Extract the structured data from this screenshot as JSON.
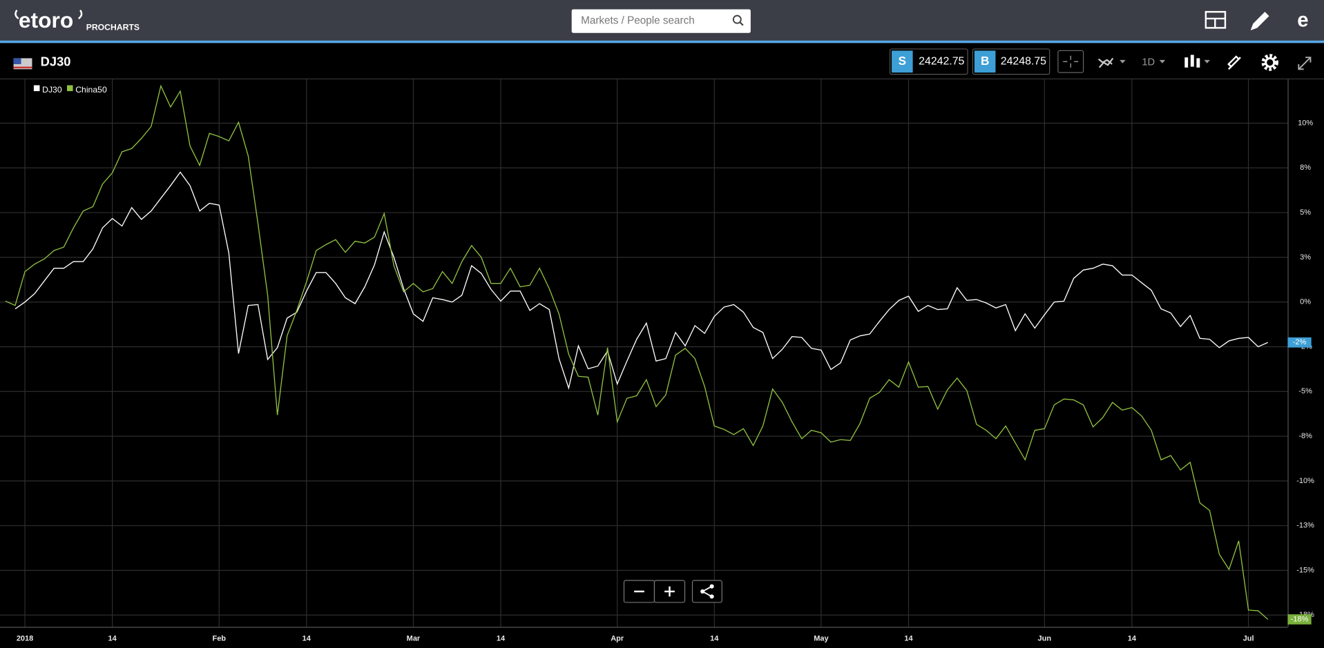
{
  "ui": {
    "logo": "etoro",
    "logo_sub": "PROCHARTS",
    "search_placeholder": "Markets / People search",
    "instrument": "DJ30",
    "sell_label": "S",
    "sell_price": 24242.75,
    "buy_label": "B",
    "buy_price": 24248.75,
    "timeframe": "1D"
  },
  "chart_data": {
    "type": "line",
    "categories": [
      null,
      null,
      "2018",
      null,
      null,
      null,
      null,
      null,
      null,
      null,
      null,
      "14",
      null,
      null,
      null,
      null,
      null,
      null,
      null,
      null,
      null,
      null,
      "Feb",
      null,
      null,
      null,
      null,
      null,
      null,
      null,
      null,
      "14",
      null,
      null,
      null,
      null,
      null,
      null,
      null,
      null,
      null,
      null,
      "Mar",
      null,
      null,
      null,
      null,
      null,
      null,
      null,
      null,
      "14",
      null,
      null,
      null,
      null,
      null,
      null,
      null,
      null,
      null,
      null,
      null,
      "Apr",
      null,
      null,
      null,
      null,
      null,
      null,
      null,
      null,
      null,
      "14",
      null,
      null,
      null,
      null,
      null,
      null,
      null,
      null,
      null,
      null,
      "May",
      null,
      null,
      null,
      null,
      null,
      null,
      null,
      null,
      "14",
      null,
      null,
      null,
      null,
      null,
      null,
      null,
      null,
      null,
      null,
      null,
      null,
      null,
      "Jun",
      null,
      null,
      null,
      null,
      null,
      null,
      null,
      null,
      "14",
      null,
      null,
      null,
      null,
      null,
      null,
      null,
      null,
      null,
      null,
      null,
      "Jul",
      null,
      null
    ],
    "series": [
      {
        "name": "DJ30",
        "color": "#ffffff",
        "label_color": "#3d9fd6",
        "values": [
          null,
          -0.38,
          0,
          0.47,
          1.18,
          1.89,
          1.89,
          2.26,
          2.26,
          2.97,
          4.15,
          4.67,
          4.25,
          5.28,
          4.62,
          5.09,
          5.8,
          6.51,
          7.26,
          6.51,
          5.09,
          5.52,
          5.42,
          2.74,
          -2.88,
          -0.19,
          -0.14,
          -3.21,
          -2.55,
          -0.9,
          -0.57,
          0.61,
          1.65,
          1.65,
          1.04,
          0.24,
          -0.09,
          0.85,
          2.08,
          3.92,
          2.5,
          0.75,
          -0.66,
          -1.08,
          0.24,
          0.14,
          0,
          0.38,
          2.03,
          1.6,
          0.71,
          0.05,
          0.61,
          0.61,
          -0.47,
          -0.09,
          -0.42,
          -3.16,
          -4.81,
          -2.45,
          -3.73,
          -3.58,
          -2.74,
          -4.58,
          -3.3,
          -2.08,
          -1.18,
          -3.3,
          -3.16,
          -1.7,
          -2.45,
          -1.32,
          -1.75,
          -0.8,
          -0.28,
          -0.14,
          -0.57,
          -1.42,
          -1.7,
          -3.16,
          -2.64,
          -1.93,
          -1.98,
          -2.59,
          -2.69,
          -3.77,
          -3.4,
          -2.12,
          -1.89,
          -1.79,
          -1.08,
          -0.42,
          0.09,
          0.33,
          -0.52,
          -0.19,
          -0.42,
          -0.38,
          0.8,
          0.09,
          0.14,
          -0.05,
          -0.33,
          -0.14,
          -1.6,
          -0.66,
          -1.46,
          -0.71,
          0,
          0.05,
          1.32,
          1.79,
          1.89,
          2.12,
          2.03,
          1.51,
          1.51,
          1.08,
          0.66,
          -0.38,
          -0.61,
          -1.37,
          -0.75,
          -2.03,
          -2.08,
          -2.55,
          -2.17,
          -2.03,
          -1.98,
          -2.5,
          -2.26
        ],
        "value_labels": [
          null,
          null,
          null,
          null,
          null,
          null,
          null,
          null,
          null,
          null,
          null,
          null,
          null,
          null,
          null,
          null,
          null,
          null,
          null,
          null,
          null,
          null,
          null,
          null,
          null,
          null,
          null,
          null,
          null,
          null,
          null,
          null,
          null,
          null,
          null,
          null,
          null,
          null,
          null,
          null,
          null,
          null,
          null,
          null,
          null,
          null,
          null,
          null,
          null,
          null,
          null,
          null,
          null,
          null,
          null,
          null,
          null,
          null,
          null,
          null,
          null,
          null,
          null,
          null,
          null,
          null,
          null,
          null,
          null,
          null,
          null,
          null,
          null,
          null,
          null,
          null,
          null,
          null,
          null,
          null,
          null,
          null,
          null,
          null,
          null,
          null,
          null,
          null,
          null,
          null,
          null,
          null,
          null,
          null,
          null,
          null,
          null,
          null,
          null,
          null,
          null,
          null,
          null,
          null,
          null,
          null,
          null,
          null,
          null,
          null,
          null,
          null,
          null,
          null,
          null,
          null,
          null,
          null,
          null,
          null,
          null,
          null,
          null,
          null,
          null,
          null,
          null,
          null,
          null,
          null,
          "-2%"
        ]
      },
      {
        "name": "China50",
        "color": "#8fc040",
        "label_color": "#7ab03c",
        "values": [
          0.05,
          -0.19,
          1.7,
          2.12,
          2.41,
          2.88,
          3.07,
          4.15,
          5.09,
          5.33,
          6.6,
          7.22,
          8.4,
          8.58,
          9.15,
          9.81,
          12.08,
          10.9,
          11.79,
          8.73,
          7.64,
          9.43,
          9.25,
          9.01,
          10.05,
          8.16,
          4.39,
          0.38,
          -6.32,
          -1.89,
          -0.47,
          1.13,
          2.88,
          3.21,
          3.49,
          2.78,
          3.4,
          3.3,
          3.63,
          4.95,
          2.03,
          0.57,
          1.04,
          0.57,
          0.75,
          1.7,
          1.04,
          2.26,
          3.16,
          2.5,
          1.04,
          1.04,
          1.89,
          0.85,
          0.94,
          1.89,
          0.75,
          -0.66,
          -2.92,
          -4.15,
          -4.2,
          -6.32,
          -2.55,
          -6.7,
          -5.38,
          -5.24,
          -4.34,
          -5.85,
          -5.19,
          -2.97,
          -2.59,
          -3.16,
          -4.72,
          -6.93,
          -7.12,
          -7.41,
          -7.08,
          -8.02,
          -6.93,
          -4.86,
          -5.61,
          -6.7,
          -7.64,
          -7.17,
          -7.31,
          -7.83,
          -7.69,
          -7.74,
          -6.79,
          -5.38,
          -5.05,
          -4.34,
          -4.76,
          -3.35,
          -4.76,
          -4.72,
          -5.99,
          -4.91,
          -4.25,
          -4.95,
          -6.84,
          -7.17,
          -7.64,
          -6.93,
          -7.88,
          -8.82,
          -7.17,
          -7.08,
          -5.75,
          -5.42,
          -5.47,
          -5.75,
          -6.98,
          -6.46,
          -5.61,
          -6.04,
          -5.9,
          -6.37,
          -7.17,
          -8.82,
          -8.58,
          -9.39,
          -8.96,
          -11.23,
          -11.65,
          -14.1,
          -14.95,
          -13.35,
          -17.22,
          -17.26,
          -17.74
        ],
        "value_labels": [
          null,
          null,
          null,
          null,
          null,
          null,
          null,
          null,
          null,
          null,
          null,
          null,
          null,
          null,
          null,
          null,
          null,
          null,
          null,
          null,
          null,
          null,
          null,
          null,
          null,
          null,
          null,
          null,
          null,
          null,
          null,
          null,
          null,
          null,
          null,
          null,
          null,
          null,
          null,
          null,
          null,
          null,
          null,
          null,
          null,
          null,
          null,
          null,
          null,
          null,
          null,
          null,
          null,
          null,
          null,
          null,
          null,
          null,
          null,
          null,
          null,
          null,
          null,
          null,
          null,
          null,
          null,
          null,
          null,
          null,
          null,
          null,
          null,
          null,
          null,
          null,
          null,
          null,
          null,
          null,
          null,
          null,
          null,
          null,
          null,
          null,
          null,
          null,
          null,
          null,
          null,
          null,
          null,
          null,
          null,
          null,
          null,
          null,
          null,
          null,
          null,
          null,
          null,
          null,
          null,
          null,
          null,
          null,
          null,
          null,
          null,
          null,
          null,
          null,
          null,
          null,
          null,
          null,
          null,
          null,
          null,
          null,
          null,
          null,
          null,
          null,
          null,
          null,
          null,
          null,
          "-18%"
        ]
      }
    ],
    "ylim": [
      -18.16,
      12.45
    ],
    "yticks": [
      {
        "value": 10,
        "label": "10%"
      },
      {
        "value": 7.5,
        "label": "8%"
      },
      {
        "value": 5,
        "label": "5%"
      },
      {
        "value": 2.5,
        "label": "3%"
      },
      {
        "value": 0,
        "label": "0%"
      },
      {
        "value": -2.5,
        "label": "-2%"
      },
      {
        "value": -5,
        "label": "-5%"
      },
      {
        "value": -7.5,
        "label": "-8%"
      },
      {
        "value": -10,
        "label": "-10%"
      },
      {
        "value": -12.5,
        "label": "-13%"
      },
      {
        "value": -15,
        "label": "-15%"
      },
      {
        "value": -17.5,
        "label": "-18%"
      }
    ],
    "grid": true,
    "legend": "top-left"
  }
}
